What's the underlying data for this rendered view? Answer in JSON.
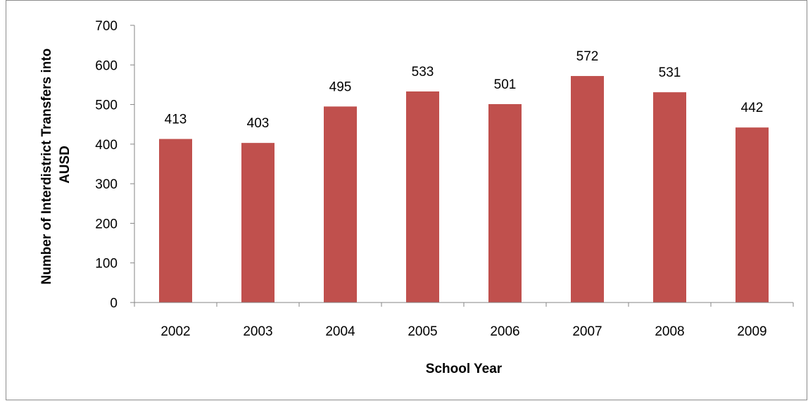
{
  "chart_data": {
    "type": "bar",
    "categories": [
      "2002",
      "2003",
      "2004",
      "2005",
      "2006",
      "2007",
      "2008",
      "2009"
    ],
    "values": [
      413,
      403,
      495,
      533,
      501,
      572,
      531,
      442
    ],
    "data_labels": [
      "413",
      "403",
      "495",
      "533",
      "501",
      "572",
      "531",
      "442"
    ],
    "xlabel": "School Year",
    "ylabel_lines": [
      "Number of Interdistrict Transfers into",
      "AUSD"
    ],
    "ylim": [
      0,
      700
    ],
    "yticks": [
      "0",
      "100",
      "200",
      "300",
      "400",
      "500",
      "600",
      "700"
    ],
    "grid": false,
    "legend": "none",
    "bar_color": "#c0504d",
    "axis_color": "#868686"
  }
}
